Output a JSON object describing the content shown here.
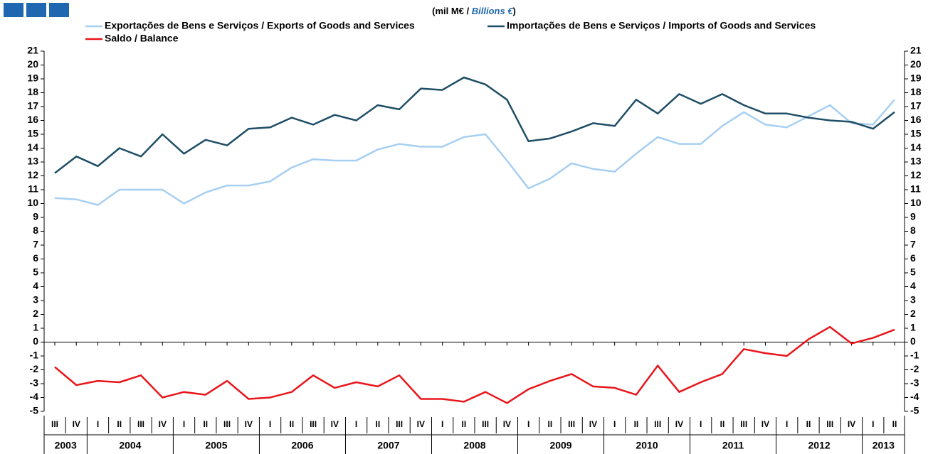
{
  "chart_data": {
    "type": "line",
    "subtitle": [
      "(mil M€ / ",
      "Billions €",
      ")"
    ],
    "categories": [
      "III",
      "IV",
      "I",
      "II",
      "III",
      "IV",
      "I",
      "II",
      "III",
      "IV",
      "I",
      "II",
      "III",
      "IV",
      "I",
      "II",
      "III",
      "IV",
      "I",
      "II",
      "III",
      "IV",
      "I",
      "II",
      "III",
      "IV",
      "I",
      "II",
      "III",
      "IV",
      "I",
      "II",
      "III",
      "IV",
      "I",
      "II",
      "III",
      "IV",
      "I",
      "II"
    ],
    "category_groups": [
      "2003",
      null,
      "2004",
      null,
      null,
      null,
      "2005",
      null,
      null,
      null,
      "2006",
      null,
      null,
      null,
      "2007",
      null,
      null,
      null,
      "2008",
      null,
      null,
      null,
      "2009",
      null,
      null,
      null,
      "2010",
      null,
      null,
      null,
      "2011",
      null,
      null,
      null,
      "2012",
      null,
      null,
      null,
      "2013",
      null
    ],
    "series": [
      {
        "name": "Exportações de Bens e Serviços / Exports of Goods and Services",
        "color": "#a6cff2",
        "values": [
          10.4,
          10.3,
          9.9,
          11.0,
          11.0,
          11.0,
          10.0,
          10.8,
          11.3,
          11.3,
          11.6,
          12.6,
          13.2,
          13.1,
          13.1,
          13.9,
          14.3,
          14.1,
          14.1,
          14.8,
          15.0,
          13.1,
          11.1,
          11.8,
          12.9,
          12.5,
          12.3,
          13.6,
          14.8,
          14.3,
          14.3,
          15.6,
          16.6,
          15.7,
          15.5,
          16.3,
          17.1,
          15.8,
          15.7,
          17.5
        ]
      },
      {
        "name": "Importações de Bens e Serviços / Imports of Goods and Services",
        "color": "#1f4e66",
        "values": [
          12.2,
          13.4,
          12.7,
          14.0,
          13.4,
          15.0,
          13.6,
          14.6,
          14.2,
          15.4,
          15.5,
          16.2,
          15.7,
          16.4,
          16.0,
          17.1,
          16.8,
          18.3,
          18.2,
          19.1,
          18.6,
          17.5,
          14.5,
          14.7,
          15.2,
          15.8,
          15.6,
          17.5,
          16.5,
          17.9,
          17.2,
          17.9,
          17.1,
          16.5,
          16.5,
          16.2,
          16.0,
          15.9,
          15.4,
          16.6
        ]
      },
      {
        "name": "Saldo / Balance",
        "color": "#e8161b",
        "values": [
          -1.8,
          -3.1,
          -2.8,
          -2.9,
          -2.4,
          -4.0,
          -3.6,
          -3.8,
          -2.8,
          -4.1,
          -4.0,
          -3.6,
          -2.4,
          -3.3,
          -2.9,
          -3.2,
          -2.4,
          -4.1,
          -4.1,
          -4.3,
          -3.6,
          -4.4,
          -3.4,
          -2.8,
          -2.3,
          -3.2,
          -3.3,
          -3.8,
          -1.7,
          -3.6,
          -2.9,
          -2.3,
          -0.5,
          -0.8,
          -1.0,
          0.2,
          1.1,
          -0.1,
          0.3,
          0.9
        ]
      }
    ],
    "ylim": [
      -5,
      21
    ],
    "yticks": [
      -5,
      -4,
      -3,
      -2,
      -1,
      0,
      1,
      2,
      3,
      4,
      5,
      6,
      7,
      8,
      9,
      10,
      11,
      12,
      13,
      14,
      15,
      16,
      17,
      18,
      19,
      20,
      21
    ]
  }
}
